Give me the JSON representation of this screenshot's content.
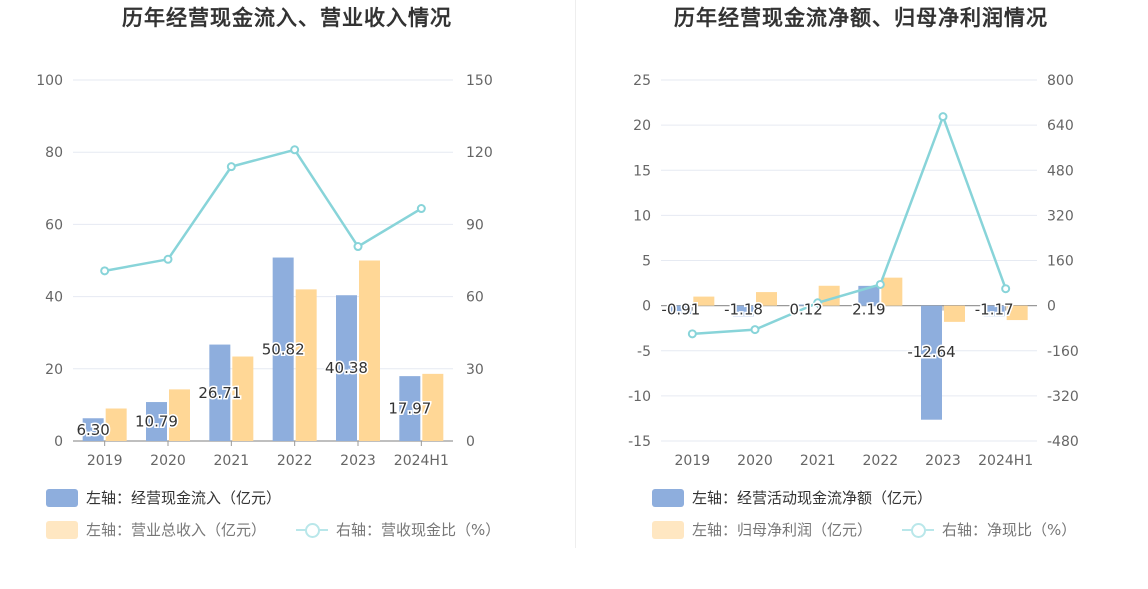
{
  "charts": [
    {
      "title": "历年经营现金流入、营业收入情况",
      "legend": {
        "bar1": "左轴：经营现金流入（亿元）",
        "bar2": "左轴：营业总收入（亿元）",
        "line": "右轴：营收现金比（%）"
      }
    },
    {
      "title": "历年经营现金流净额、归母净利润情况",
      "legend": {
        "bar1": "左轴：经营活动现金流净额（亿元）",
        "bar2": "左轴：归母净利润（亿元）",
        "line": "右轴：净现比（%）"
      }
    }
  ],
  "colors": {
    "bar1": "#8eaedd",
    "bar2": "#ffd796",
    "line": "#88d4d9",
    "grid": "#e6eaf2",
    "axis": "#999999"
  },
  "chart_data": [
    {
      "type": "bar",
      "title": "历年经营现金流入、营业收入情况",
      "categories": [
        "2019",
        "2020",
        "2021",
        "2022",
        "2023",
        "2024H1"
      ],
      "left_axis": {
        "min": 0,
        "max": 100,
        "ticks": [
          "0",
          "20",
          "40",
          "60",
          "80",
          "100"
        ]
      },
      "right_axis": {
        "min": 0,
        "max": 150,
        "ticks": [
          "0",
          "30",
          "60",
          "90",
          "120",
          "150"
        ]
      },
      "series": [
        {
          "name": "左轴：经营现金流入（亿元）",
          "axis": "left",
          "type": "bar",
          "values": [
            6.3,
            10.79,
            26.71,
            50.82,
            40.38,
            17.97
          ],
          "labels": [
            "6.30",
            "10.79",
            "26.71",
            "50.82",
            "40.38",
            "17.97"
          ]
        },
        {
          "name": "左轴：营业总收入（亿元）",
          "axis": "left",
          "type": "bar",
          "values": [
            9.0,
            14.3,
            23.4,
            42.0,
            50.0,
            18.6
          ]
        },
        {
          "name": "右轴：营收现金比（%）",
          "axis": "right",
          "type": "line",
          "values": [
            70.7,
            75.5,
            114.0,
            121.0,
            80.8,
            96.6
          ]
        }
      ]
    },
    {
      "type": "bar",
      "title": "历年经营现金流净额、归母净利润情况",
      "categories": [
        "2019",
        "2020",
        "2021",
        "2022",
        "2023",
        "2024H1"
      ],
      "left_axis": {
        "min": -15,
        "max": 25,
        "ticks": [
          "-15",
          "-10",
          "-5",
          "0",
          "5",
          "10",
          "15",
          "20",
          "25"
        ]
      },
      "right_axis": {
        "min": -480,
        "max": 800,
        "ticks": [
          "-480",
          "-320",
          "-160",
          "0",
          "160",
          "320",
          "480",
          "640",
          "800"
        ]
      },
      "series": [
        {
          "name": "左轴：经营活动现金流净额（亿元）",
          "axis": "left",
          "type": "bar",
          "values": [
            -0.91,
            -1.18,
            0.12,
            2.19,
            -12.64,
            -1.17
          ],
          "labels": [
            "-0.91",
            "-1.18",
            "0.12",
            "2.19",
            "-12.64",
            "-1.17"
          ]
        },
        {
          "name": "左轴：归母净利润（亿元）",
          "axis": "left",
          "type": "bar",
          "values": [
            1.0,
            1.5,
            2.2,
            3.1,
            -1.8,
            -1.6
          ]
        },
        {
          "name": "右轴：净现比（%）",
          "axis": "right",
          "type": "line",
          "values": [
            -100,
            -85,
            10,
            75,
            670,
            60
          ]
        }
      ]
    }
  ]
}
